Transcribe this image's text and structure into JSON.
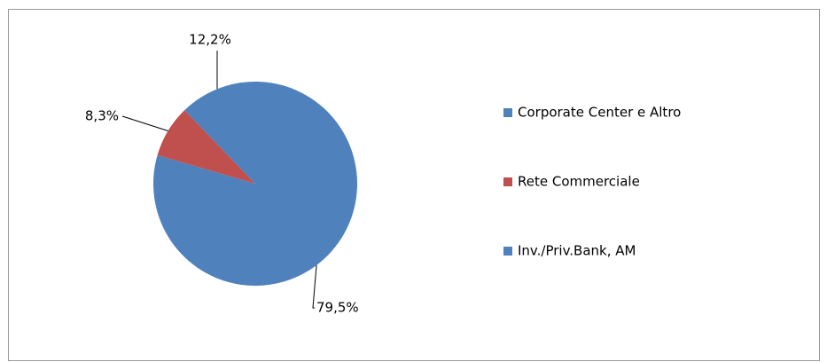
{
  "chart_data": {
    "type": "pie",
    "categories": [
      "Corporate Center e Altro",
      "Rete Commerciale",
      "Inv./Priv.Bank, AM"
    ],
    "values": [
      79.5,
      8.3,
      12.2
    ],
    "value_labels": [
      "79,5%",
      "8,3%",
      "12,2%"
    ],
    "colors": [
      "#4f81bd",
      "#c0504d",
      "#4f81bd"
    ],
    "legend": "right"
  }
}
